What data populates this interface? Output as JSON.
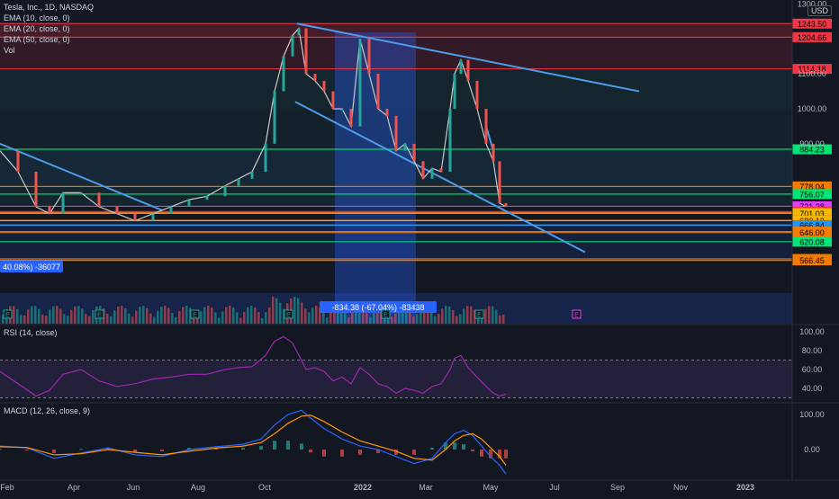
{
  "header": {
    "symbol": "Tesla, Inc., 1D, NASDAQ",
    "ema10": "EMA (10, close, 0)",
    "ema20": "EMA (20, close, 0)",
    "ema50": "EMA (50, close, 0)",
    "vol": "Vol",
    "currency": "USD"
  },
  "rsi_title": "RSI (14, close)",
  "macd_title": "MACD (12, 26, close, 9)",
  "colors": {
    "bg": "#131722",
    "up": "#26a69a",
    "down": "#ef5350",
    "trend": "#4e9be8",
    "rsi": "#9c27b0",
    "macd": "#2962ff",
    "signal": "#ff9800"
  },
  "chart_data": [
    {
      "type": "line",
      "panel": "price",
      "title": "Tesla, Inc., 1D, NASDAQ",
      "x_ticks": [
        "Feb",
        "Apr",
        "Jun",
        "Aug",
        "Oct",
        "2022",
        "Mar",
        "May",
        "Jul",
        "Sep",
        "Nov",
        "2023"
      ],
      "y_ticks": [
        1300,
        1100,
        1000,
        900
      ],
      "y_tick_labels": [
        "1300.00",
        "1100.00",
        "1000.00",
        "900.00"
      ],
      "price_levels": [
        {
          "value": 1243.5,
          "label": "1243.50",
          "color": "#f23645"
        },
        {
          "value": 1204.66,
          "label": "1204.66",
          "color": "#f23645"
        },
        {
          "value": 1114.18,
          "label": "1114.18",
          "color": "#f23645"
        },
        {
          "value": 884.23,
          "label": "884.23",
          "color": "#00e676"
        },
        {
          "value": 778.04,
          "label": "778.04",
          "color": "#f57c00"
        },
        {
          "value": 756.07,
          "label": "756.07",
          "color": "#00e676"
        },
        {
          "value": 721.28,
          "label": "721.28",
          "color": "#e040fb"
        },
        {
          "value": 706.01,
          "label": "706.01",
          "color": "#f23645"
        },
        {
          "value": 704.5,
          "label": "59:38",
          "color": "#f23645"
        },
        {
          "value": 702.3,
          "label": "702.30",
          "color": "#f57c00"
        },
        {
          "value": 701.03,
          "label": "701.03",
          "color": "#f5b700"
        },
        {
          "value": 680.89,
          "label": "680.89",
          "color": "#f57c00"
        },
        {
          "value": 680.12,
          "label": "680.12",
          "color": "#f5b700"
        },
        {
          "value": 667.67,
          "label": "667.67",
          "color": "#f57c00"
        },
        {
          "value": 666.84,
          "label": "666.84",
          "color": "#2196f3"
        },
        {
          "value": 648.81,
          "label": "648.81",
          "color": "#f57c00"
        },
        {
          "value": 646.0,
          "label": "646.00",
          "color": "#f57c00"
        },
        {
          "value": 620.08,
          "label": "620.08",
          "color": "#00e676"
        },
        {
          "value": 570.69,
          "label": "570.69",
          "color": "#f57c00"
        },
        {
          "value": 566.45,
          "label": "566.45",
          "color": "#f57c00"
        }
      ],
      "series": [
        {
          "name": "Tesla, Inc.",
          "x": [
            0,
            20,
            40,
            55,
            70,
            90,
            110,
            130,
            150,
            170,
            190,
            210,
            230,
            250,
            265,
            280,
            295,
            305,
            315,
            325,
            332,
            340,
            350,
            360,
            370,
            380,
            390,
            400,
            410,
            420,
            430,
            440,
            450,
            460,
            470,
            480,
            490,
            500,
            505,
            512,
            520,
            530,
            540,
            548,
            555,
            562
          ],
          "y": [
            880,
            820,
            720,
            700,
            760,
            760,
            720,
            700,
            680,
            700,
            720,
            740,
            750,
            780,
            800,
            820,
            900,
            1050,
            1150,
            1210,
            1230,
            1100,
            1080,
            1050,
            1000,
            1000,
            950,
            1200,
            1100,
            1000,
            980,
            880,
            900,
            850,
            800,
            830,
            820,
            1000,
            1100,
            1140,
            1080,
            1000,
            900,
            850,
            730,
            720
          ]
        }
      ],
      "annotations": [
        "40.08%) -36077",
        "-834.38 (-67.04%) -83438"
      ]
    },
    {
      "type": "line",
      "panel": "rsi",
      "title": "RSI (14, close)",
      "y_ticks": [
        100,
        80,
        60,
        40
      ],
      "y_tick_labels": [
        "100.00",
        "80.00",
        "60.00",
        "40.00"
      ],
      "series": [
        {
          "name": "RSI (14, close)",
          "x": [
            0,
            20,
            40,
            55,
            70,
            90,
            110,
            130,
            150,
            170,
            190,
            210,
            230,
            250,
            265,
            280,
            295,
            305,
            315,
            325,
            332,
            340,
            350,
            360,
            370,
            380,
            390,
            400,
            410,
            420,
            430,
            440,
            450,
            460,
            470,
            480,
            490,
            500,
            505,
            512,
            520,
            530,
            540,
            548,
            555,
            562
          ],
          "y": [
            58,
            45,
            32,
            38,
            55,
            60,
            48,
            42,
            45,
            50,
            52,
            55,
            55,
            60,
            62,
            63,
            75,
            90,
            95,
            88,
            75,
            60,
            62,
            58,
            48,
            52,
            45,
            62,
            55,
            45,
            42,
            35,
            40,
            38,
            35,
            42,
            45,
            60,
            72,
            75,
            62,
            52,
            42,
            35,
            32,
            34
          ]
        }
      ]
    },
    {
      "type": "line",
      "panel": "macd",
      "title": "MACD (12, 26, close, 9)",
      "y_ticks": [
        100,
        0
      ],
      "y_tick_labels": [
        "100.00",
        "0.00"
      ],
      "series": [
        {
          "name": "MACD",
          "x": [
            0,
            30,
            60,
            90,
            120,
            150,
            180,
            210,
            240,
            270,
            290,
            305,
            320,
            335,
            345,
            360,
            380,
            400,
            420,
            440,
            460,
            480,
            495,
            505,
            515,
            525,
            535,
            545,
            555,
            562
          ],
          "y": [
            10,
            5,
            -25,
            -10,
            5,
            -15,
            -20,
            0,
            8,
            15,
            30,
            70,
            100,
            112,
            90,
            60,
            30,
            10,
            0,
            -20,
            -40,
            -25,
            20,
            45,
            55,
            40,
            10,
            -20,
            -45,
            -70
          ]
        },
        {
          "name": "Signal",
          "x": [
            0,
            30,
            60,
            90,
            120,
            150,
            180,
            210,
            240,
            270,
            290,
            305,
            320,
            335,
            345,
            360,
            380,
            400,
            420,
            440,
            460,
            480,
            495,
            505,
            515,
            525,
            535,
            545,
            555,
            562
          ],
          "y": [
            8,
            6,
            -15,
            -12,
            0,
            -8,
            -15,
            -5,
            4,
            10,
            20,
            45,
            75,
            95,
            98,
            80,
            50,
            25,
            10,
            -5,
            -25,
            -30,
            0,
            25,
            40,
            45,
            30,
            5,
            -20,
            -45
          ]
        }
      ]
    }
  ]
}
